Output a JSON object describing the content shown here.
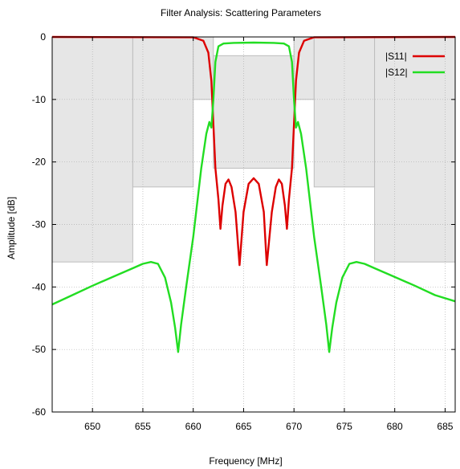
{
  "chart_data": {
    "type": "line",
    "title": "Filter Analysis: Scattering Parameters",
    "xlabel": "Frequency [MHz]",
    "ylabel": "Amplitude [dB]",
    "xlim": [
      646,
      686
    ],
    "ylim": [
      -60,
      0
    ],
    "xticks": [
      650,
      655,
      660,
      665,
      670,
      675,
      680,
      685
    ],
    "yticks": [
      0,
      -10,
      -20,
      -30,
      -40,
      -50,
      -60
    ],
    "grid": true,
    "legend_position": "top-right",
    "mask": {
      "description": "specification mask regions (grey)",
      "color": "#e6e6e6",
      "regions": [
        {
          "x": [
            646,
            654
          ],
          "y": [
            -36,
            0
          ]
        },
        {
          "x": [
            654,
            660
          ],
          "y": [
            -24,
            0
          ]
        },
        {
          "x": [
            660,
            662
          ],
          "y": [
            -10,
            0
          ]
        },
        {
          "x": [
            662,
            670
          ],
          "y": [
            -21,
            -3
          ]
        },
        {
          "x": [
            670,
            672
          ],
          "y": [
            -10,
            0
          ]
        },
        {
          "x": [
            672,
            678
          ],
          "y": [
            -24,
            0
          ]
        },
        {
          "x": [
            678,
            686
          ],
          "y": [
            -36,
            0
          ]
        }
      ]
    },
    "series": [
      {
        "name": "|S11|",
        "color": "#dd0000",
        "points": [
          [
            646,
            0
          ],
          [
            660,
            -0.05
          ],
          [
            661.0,
            -0.6
          ],
          [
            661.5,
            -2.5
          ],
          [
            661.8,
            -7
          ],
          [
            662.0,
            -14
          ],
          [
            662.2,
            -21
          ],
          [
            662.5,
            -26
          ],
          [
            662.7,
            -30.7
          ],
          [
            662.9,
            -27
          ],
          [
            663.2,
            -23.5
          ],
          [
            663.5,
            -22.8
          ],
          [
            663.8,
            -24
          ],
          [
            664.2,
            -28
          ],
          [
            664.6,
            -36.5
          ],
          [
            665.0,
            -28
          ],
          [
            665.5,
            -23.5
          ],
          [
            666.0,
            -22.6
          ],
          [
            666.5,
            -23.5
          ],
          [
            667.0,
            -28
          ],
          [
            667.3,
            -36.5
          ],
          [
            667.8,
            -28
          ],
          [
            668.2,
            -24
          ],
          [
            668.5,
            -22.8
          ],
          [
            668.8,
            -23.5
          ],
          [
            669.1,
            -27
          ],
          [
            669.3,
            -30.7
          ],
          [
            669.5,
            -26
          ],
          [
            669.8,
            -21
          ],
          [
            670.0,
            -14
          ],
          [
            670.2,
            -7
          ],
          [
            670.5,
            -2.5
          ],
          [
            671.0,
            -0.6
          ],
          [
            672,
            -0.05
          ],
          [
            686,
            0
          ]
        ]
      },
      {
        "name": "|S12|",
        "color": "#22dd22",
        "points": [
          [
            646,
            -42.8
          ],
          [
            648,
            -41.3
          ],
          [
            650,
            -39.8
          ],
          [
            652,
            -38.4
          ],
          [
            654,
            -37.0
          ],
          [
            655,
            -36.3
          ],
          [
            655.8,
            -36.0
          ],
          [
            656.5,
            -36.3
          ],
          [
            657.2,
            -38.5
          ],
          [
            657.8,
            -42.5
          ],
          [
            658.2,
            -46.5
          ],
          [
            658.5,
            -50.4
          ],
          [
            658.8,
            -46
          ],
          [
            659.3,
            -40
          ],
          [
            660,
            -32
          ],
          [
            660.8,
            -21
          ],
          [
            661.3,
            -15.5
          ],
          [
            661.6,
            -13.6
          ],
          [
            661.8,
            -14.5
          ],
          [
            662.0,
            -10
          ],
          [
            662.2,
            -4
          ],
          [
            662.5,
            -1.5
          ],
          [
            663,
            -1.05
          ],
          [
            664,
            -0.95
          ],
          [
            666,
            -0.9
          ],
          [
            668,
            -0.95
          ],
          [
            669,
            -1.05
          ],
          [
            669.5,
            -1.5
          ],
          [
            669.8,
            -4
          ],
          [
            670.0,
            -10
          ],
          [
            670.2,
            -14.5
          ],
          [
            670.4,
            -13.6
          ],
          [
            670.7,
            -15.5
          ],
          [
            671.2,
            -21
          ],
          [
            672,
            -32
          ],
          [
            672.7,
            -40
          ],
          [
            673.2,
            -46
          ],
          [
            673.5,
            -50.4
          ],
          [
            673.8,
            -46.5
          ],
          [
            674.2,
            -42.5
          ],
          [
            674.8,
            -38.5
          ],
          [
            675.5,
            -36.3
          ],
          [
            676.2,
            -36.0
          ],
          [
            677,
            -36.3
          ],
          [
            678,
            -37.0
          ],
          [
            680,
            -38.4
          ],
          [
            682,
            -39.8
          ],
          [
            684,
            -41.3
          ],
          [
            686,
            -42.3
          ]
        ]
      }
    ]
  }
}
